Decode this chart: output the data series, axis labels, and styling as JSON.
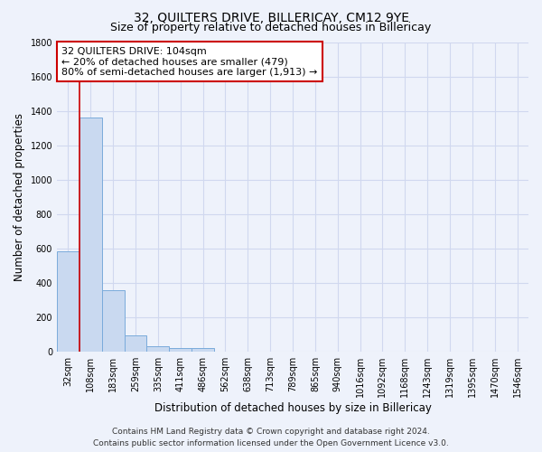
{
  "title": "32, QUILTERS DRIVE, BILLERICAY, CM12 9YE",
  "subtitle": "Size of property relative to detached houses in Billericay",
  "xlabel": "Distribution of detached houses by size in Billericay",
  "ylabel": "Number of detached properties",
  "categories": [
    "32sqm",
    "108sqm",
    "183sqm",
    "259sqm",
    "335sqm",
    "411sqm",
    "486sqm",
    "562sqm",
    "638sqm",
    "713sqm",
    "789sqm",
    "865sqm",
    "940sqm",
    "1016sqm",
    "1092sqm",
    "1168sqm",
    "1243sqm",
    "1319sqm",
    "1395sqm",
    "1470sqm",
    "1546sqm"
  ],
  "values": [
    580,
    1360,
    355,
    95,
    30,
    20,
    20,
    0,
    0,
    0,
    0,
    0,
    0,
    0,
    0,
    0,
    0,
    0,
    0,
    0,
    0
  ],
  "bar_color": "#c9d9f0",
  "bar_edge_color": "#7aabdb",
  "vline_x": 0.5,
  "vline_color": "#cc0000",
  "annotation_text": "32 QUILTERS DRIVE: 104sqm\n← 20% of detached houses are smaller (479)\n80% of semi-detached houses are larger (1,913) →",
  "annotation_box_color": "white",
  "annotation_box_edge_color": "#cc0000",
  "ylim": [
    0,
    1800
  ],
  "yticks": [
    0,
    200,
    400,
    600,
    800,
    1000,
    1200,
    1400,
    1600,
    1800
  ],
  "background_color": "#eef2fb",
  "grid_color": "#d0d8ef",
  "footer_line1": "Contains HM Land Registry data © Crown copyright and database right 2024.",
  "footer_line2": "Contains public sector information licensed under the Open Government Licence v3.0.",
  "title_fontsize": 10,
  "subtitle_fontsize": 9,
  "axis_label_fontsize": 8.5,
  "tick_fontsize": 7,
  "annotation_fontsize": 8,
  "footer_fontsize": 6.5
}
